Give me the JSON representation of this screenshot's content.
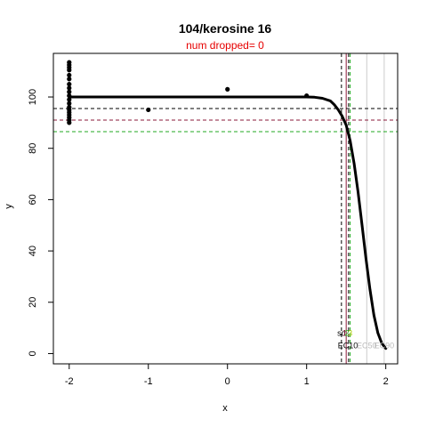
{
  "chart_data": {
    "type": "scatter",
    "title": "104/kerosine 16",
    "subtitle": "num dropped= 0",
    "xlabel": "x",
    "ylabel": "y",
    "xlim": [
      -2.2,
      2.15
    ],
    "ylim": [
      -4,
      117
    ],
    "x_ticks": [
      -2,
      -1,
      0,
      1,
      2
    ],
    "y_ticks": [
      0,
      20,
      40,
      60,
      80,
      100
    ],
    "grid": false,
    "points": [
      {
        "x": -2,
        "y": 113.5
      },
      {
        "x": -2,
        "y": 112.5
      },
      {
        "x": -2,
        "y": 111.5
      },
      {
        "x": -2,
        "y": 110.5
      },
      {
        "x": -2,
        "y": 108.5
      },
      {
        "x": -2,
        "y": 107
      },
      {
        "x": -2,
        "y": 105
      },
      {
        "x": -2,
        "y": 103.5
      },
      {
        "x": -2,
        "y": 102
      },
      {
        "x": -2,
        "y": 100.5
      },
      {
        "x": -2,
        "y": 99
      },
      {
        "x": -2,
        "y": 97.5
      },
      {
        "x": -2,
        "y": 96
      },
      {
        "x": -2,
        "y": 95
      },
      {
        "x": -2,
        "y": 94
      },
      {
        "x": -2,
        "y": 93
      },
      {
        "x": -2,
        "y": 92
      },
      {
        "x": -2,
        "y": 91
      },
      {
        "x": -2,
        "y": 90
      },
      {
        "x": -1,
        "y": 95
      },
      {
        "x": 0,
        "y": 103
      },
      {
        "x": 1,
        "y": 100.5
      }
    ],
    "fit_curve": {
      "x": [
        -2,
        -1,
        0,
        1,
        1.1,
        1.2,
        1.3,
        1.35,
        1.4,
        1.45,
        1.5,
        1.55,
        1.6,
        1.65,
        1.7,
        1.75,
        1.8,
        1.85,
        1.9,
        1.95,
        2
      ],
      "y": [
        100,
        100,
        100,
        100,
        99.9,
        99.5,
        98.5,
        97,
        95,
        92.5,
        89,
        83,
        74,
        63,
        50,
        37,
        25,
        15,
        8,
        4,
        2
      ]
    },
    "hlines": [
      {
        "y": 95.5,
        "color": "#000000",
        "style": "dashed"
      },
      {
        "y": 91,
        "color": "#8b1a3a",
        "style": "dashed"
      },
      {
        "y": 86.5,
        "color": "#22aa22",
        "style": "dashed"
      }
    ],
    "vlines": [
      {
        "x": 1.44,
        "color": "#000000",
        "style": "dashed"
      },
      {
        "x": 1.5,
        "color": "#8b1a3a",
        "style": "solid"
      },
      {
        "x": 1.53,
        "color": "#000000",
        "style": "dashed"
      },
      {
        "x": 1.55,
        "color": "#22aa22",
        "style": "dashed"
      },
      {
        "x": 1.76,
        "color": "#cccccc",
        "style": "solid"
      },
      {
        "x": 1.98,
        "color": "#cccccc",
        "style": "solid"
      }
    ],
    "annotations": [
      {
        "text": "sd",
        "x": 1.44,
        "y": 7,
        "color": "#000000"
      },
      {
        "text": "1",
        "x": 1.48,
        "y": 7,
        "color": "#8b1a3a"
      },
      {
        "text": "2",
        "x": 1.51,
        "y": 7,
        "color": "#22aa22"
      },
      {
        "text": "3",
        "x": 1.55,
        "y": 7,
        "color": "#aacc00"
      },
      {
        "text": "EC10",
        "x": 1.52,
        "y": 2,
        "color": "#000000"
      },
      {
        "text": "EC50",
        "x": 1.76,
        "y": 2,
        "color": "#bbbbbb"
      },
      {
        "text": "EC90",
        "x": 1.98,
        "y": 2,
        "color": "#bbbbbb"
      }
    ]
  }
}
